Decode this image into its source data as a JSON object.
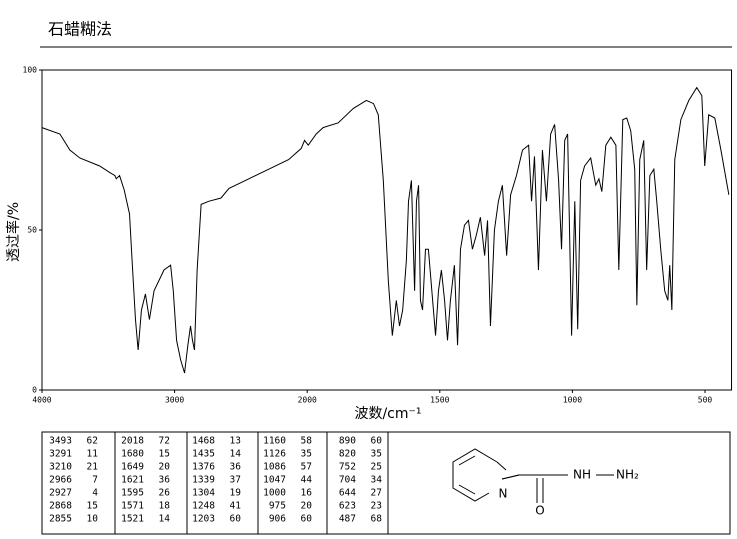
{
  "title": "石蜡糊法",
  "chart_data": {
    "type": "line",
    "color": "#000000",
    "xlabel": "波数/cm⁻¹",
    "ylabel": "透过率/%",
    "xlim": [
      4000,
      400
    ],
    "xticks": [
      4000,
      3000,
      2000,
      1500,
      1000,
      500
    ],
    "ylim": [
      0,
      100
    ],
    "yticks": [
      0,
      50,
      100
    ],
    "x": [
      4000,
      3865,
      3790,
      3715,
      3565,
      3490,
      3450,
      3440,
      3415,
      3380,
      3340,
      3320,
      3295,
      3275,
      3250,
      3220,
      3190,
      3155,
      3080,
      3030,
      3010,
      2985,
      2955,
      2925,
      2900,
      2880,
      2865,
      2850,
      2830,
      2800,
      2740,
      2650,
      2590,
      2440,
      2290,
      2140,
      2045,
      2020,
      1996,
      1966,
      1940,
      1883,
      1826,
      1777,
      1750,
      1732,
      1713,
      1694,
      1679,
      1664,
      1652,
      1640,
      1626,
      1618,
      1607,
      1595,
      1588,
      1580,
      1573,
      1565,
      1554,
      1543,
      1527,
      1516,
      1505,
      1494,
      1482,
      1471,
      1460,
      1445,
      1433,
      1422,
      1407,
      1392,
      1377,
      1362,
      1347,
      1331,
      1320,
      1309,
      1294,
      1279,
      1264,
      1248,
      1233,
      1211,
      1188,
      1165,
      1154,
      1143,
      1128,
      1113,
      1098,
      1082,
      1067,
      1052,
      1041,
      1029,
      1018,
      1003,
      991,
      980,
      969,
      954,
      931,
      912,
      900,
      889,
      874,
      855,
      836,
      825,
      810,
      795,
      780,
      765,
      757,
      746,
      731,
      720,
      708,
      693,
      682,
      667,
      652,
      640,
      633,
      625,
      614,
      591,
      561,
      531,
      512,
      501,
      486,
      463,
      440,
      410
    ],
    "values": [
      82,
      80,
      75,
      72.5,
      70,
      68,
      67,
      66,
      67,
      62.5,
      55,
      40,
      22,
      12.5,
      25,
      30,
      22,
      31,
      37.5,
      39,
      31,
      15.5,
      9.5,
      5.3,
      14,
      20,
      15.5,
      12.5,
      37.5,
      58,
      59,
      60,
      63,
      66,
      69,
      72,
      75.5,
      78,
      76.5,
      80,
      82,
      83.5,
      88,
      90.5,
      89.5,
      86,
      65.5,
      34,
      17,
      28,
      20,
      25,
      40.5,
      59,
      65.5,
      31,
      59,
      64,
      28,
      25,
      44,
      44,
      28,
      17,
      31,
      37.5,
      28,
      15.5,
      28,
      39,
      14,
      44,
      51.5,
      53,
      44,
      48.5,
      54,
      42,
      53,
      20,
      50,
      59,
      64,
      42,
      61,
      67,
      75,
      76.5,
      59,
      73,
      37.5,
      75,
      59,
      80,
      83,
      65.5,
      44,
      78,
      80,
      17,
      59,
      19,
      65.5,
      70,
      72.5,
      64,
      66,
      62,
      76.5,
      79,
      76.5,
      37.5,
      84.5,
      85,
      81,
      69,
      26.5,
      72,
      78,
      37.5,
      67,
      69,
      59,
      44,
      31,
      28,
      39,
      25,
      72,
      84.5,
      90.5,
      94.5,
      92,
      70,
      86,
      85,
      75,
      61
    ]
  },
  "peak_table": {
    "rows": [
      [
        3493,
        62,
        2018,
        72,
        1468,
        13,
        1160,
        58,
        890,
        60
      ],
      [
        3291,
        11,
        1680,
        15,
        1435,
        14,
        1126,
        35,
        820,
        35
      ],
      [
        3210,
        21,
        1649,
        20,
        1376,
        36,
        1086,
        57,
        752,
        25
      ],
      [
        2966,
        7,
        1621,
        36,
        1339,
        37,
        1047,
        44,
        704,
        34
      ],
      [
        2927,
        4,
        1595,
        26,
        1304,
        19,
        1000,
        16,
        644,
        27
      ],
      [
        2868,
        15,
        1571,
        18,
        1248,
        41,
        975,
        20,
        623,
        23
      ],
      [
        2855,
        10,
        1521,
        14,
        1203,
        60,
        906,
        60,
        487,
        68
      ]
    ]
  },
  "structure": {
    "atoms": [
      "N",
      "O",
      "NH",
      "NH₂"
    ]
  }
}
